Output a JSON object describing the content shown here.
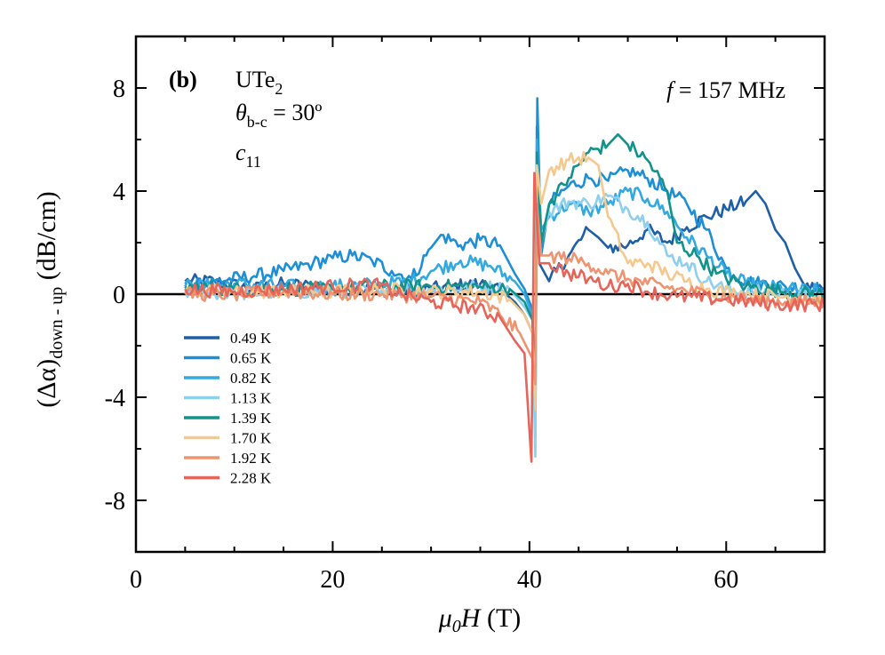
{
  "chart_data": {
    "type": "line",
    "panel_label": "(b)",
    "annotations": {
      "material": "UTe",
      "material_sub": "2",
      "angle_symbol": "θ",
      "angle_sub": "b-c",
      "angle_value": " = 30º",
      "mode_symbol": "c",
      "mode_sub": "11",
      "freq_symbol": "f",
      "freq_value": " = 157 MHz"
    },
    "xlabel": {
      "mu": "μ",
      "mu_sub": "0",
      "H": "H",
      "unit": " (T)"
    },
    "ylabel": {
      "delta": "(Δα)",
      "sub": "down - up",
      "unit": " (dB/cm)"
    },
    "xlim": [
      0,
      70
    ],
    "ylim": [
      -10,
      10
    ],
    "x_ticks": [
      0,
      20,
      40,
      60
    ],
    "y_ticks": [
      -8,
      -4,
      0,
      4,
      8
    ],
    "x_minor_step": 5,
    "y_minor_step": 2,
    "zero_line": true,
    "legend_position": "lower-left",
    "series": [
      {
        "name": "0.49 K",
        "color": "#1f5fa6",
        "points": [
          [
            5,
            0.5
          ],
          [
            8,
            0.5
          ],
          [
            12,
            0.2
          ],
          [
            15,
            0.4
          ],
          [
            18,
            0.3
          ],
          [
            20,
            0.1
          ],
          [
            24,
            0.2
          ],
          [
            28,
            0.1
          ],
          [
            32,
            0.3
          ],
          [
            35,
            0.4
          ],
          [
            37,
            0.2
          ],
          [
            38.5,
            -0.3
          ],
          [
            39.5,
            -0.8
          ],
          [
            40.3,
            -1.5
          ],
          [
            40.6,
            -4.0
          ],
          [
            40.75,
            6.5
          ],
          [
            41,
            1.2
          ],
          [
            42,
            0.5
          ],
          [
            44,
            1.5
          ],
          [
            46,
            2.5
          ],
          [
            47,
            2.2
          ],
          [
            48,
            1.8
          ],
          [
            50,
            1.9
          ],
          [
            52,
            2.5
          ],
          [
            54,
            2.0
          ],
          [
            56,
            2.6
          ],
          [
            58,
            3.0
          ],
          [
            60,
            3.3
          ],
          [
            62,
            3.6
          ],
          [
            63,
            4.0
          ],
          [
            64,
            3.5
          ],
          [
            65,
            2.5
          ],
          [
            66,
            2.0
          ],
          [
            67,
            1.0
          ],
          [
            68,
            0.3
          ],
          [
            70,
            0.2
          ]
        ]
      },
      {
        "name": "0.65 K",
        "color": "#1c8fd6",
        "points": [
          [
            5,
            0.4
          ],
          [
            8,
            0.5
          ],
          [
            12,
            0.7
          ],
          [
            15,
            0.9
          ],
          [
            18,
            1.2
          ],
          [
            20,
            1.4
          ],
          [
            22,
            1.5
          ],
          [
            24,
            1.3
          ],
          [
            26,
            0.9
          ],
          [
            28,
            0.6
          ],
          [
            30,
            1.8
          ],
          [
            31,
            2.3
          ],
          [
            33,
            1.9
          ],
          [
            35,
            2.1
          ],
          [
            37,
            1.9
          ],
          [
            38.5,
            0.8
          ],
          [
            39.5,
            0.2
          ],
          [
            40.3,
            -0.6
          ],
          [
            40.6,
            -5.5
          ],
          [
            40.8,
            7.6
          ],
          [
            41.2,
            1.5
          ],
          [
            42,
            3.5
          ],
          [
            44,
            4.2
          ],
          [
            46,
            4.5
          ],
          [
            48,
            4.4
          ],
          [
            50,
            4.8
          ],
          [
            52,
            4.5
          ],
          [
            54,
            4.0
          ],
          [
            56,
            3.5
          ],
          [
            58,
            2.5
          ],
          [
            60,
            1.0
          ],
          [
            62,
            0.5
          ],
          [
            66,
            0.3
          ],
          [
            70,
            0.2
          ]
        ]
      },
      {
        "name": "0.82 K",
        "color": "#33a9e0",
        "points": [
          [
            5,
            0.3
          ],
          [
            10,
            0.4
          ],
          [
            15,
            0.3
          ],
          [
            20,
            0.3
          ],
          [
            25,
            0.4
          ],
          [
            28,
            0.5
          ],
          [
            30,
            0.9
          ],
          [
            33,
            1.3
          ],
          [
            36,
            1.1
          ],
          [
            38.5,
            0.5
          ],
          [
            39.5,
            0.0
          ],
          [
            40.3,
            -0.8
          ],
          [
            40.6,
            -3.5
          ],
          [
            40.75,
            6.0
          ],
          [
            41.2,
            2.5
          ],
          [
            42,
            3.0
          ],
          [
            44,
            3.5
          ],
          [
            46,
            3.2
          ],
          [
            48,
            3.5
          ],
          [
            50,
            4.0
          ],
          [
            52,
            3.7
          ],
          [
            54,
            3.2
          ],
          [
            56,
            2.2
          ],
          [
            58,
            1.5
          ],
          [
            60,
            0.8
          ],
          [
            62,
            0.4
          ],
          [
            66,
            0.2
          ],
          [
            70,
            0.1
          ]
        ]
      },
      {
        "name": "1.13 K",
        "color": "#8ecfee",
        "points": [
          [
            5,
            0.1
          ],
          [
            10,
            0.0
          ],
          [
            15,
            0.1
          ],
          [
            20,
            0.1
          ],
          [
            25,
            0.2
          ],
          [
            30,
            0.2
          ],
          [
            35,
            0.3
          ],
          [
            38,
            0.2
          ],
          [
            39.5,
            -0.5
          ],
          [
            40.3,
            -1.0
          ],
          [
            40.6,
            -6.3
          ],
          [
            40.75,
            5.2
          ],
          [
            41.2,
            2.0
          ],
          [
            42,
            3.2
          ],
          [
            44,
            3.6
          ],
          [
            46,
            3.5
          ],
          [
            48,
            3.8
          ],
          [
            50,
            3.3
          ],
          [
            52,
            2.8
          ],
          [
            54,
            1.5
          ],
          [
            56,
            1.2
          ],
          [
            58,
            0.5
          ],
          [
            60,
            0.2
          ],
          [
            66,
            0.0
          ],
          [
            70,
            -0.2
          ]
        ]
      },
      {
        "name": "1.39 K",
        "color": "#11928a",
        "points": [
          [
            5,
            0.3
          ],
          [
            10,
            0.2
          ],
          [
            15,
            0.2
          ],
          [
            20,
            0.2
          ],
          [
            25,
            0.3
          ],
          [
            30,
            0.3
          ],
          [
            35,
            0.3
          ],
          [
            38,
            0.2
          ],
          [
            39.5,
            -0.3
          ],
          [
            40.3,
            -1.0
          ],
          [
            40.6,
            -4.5
          ],
          [
            40.75,
            5.5
          ],
          [
            41.2,
            2.0
          ],
          [
            42,
            3.5
          ],
          [
            44,
            4.5
          ],
          [
            46,
            5.5
          ],
          [
            48,
            5.8
          ],
          [
            49,
            6.2
          ],
          [
            50,
            5.8
          ],
          [
            52,
            5.2
          ],
          [
            54,
            4.0
          ],
          [
            55,
            2.0
          ],
          [
            57,
            1.5
          ],
          [
            59,
            0.8
          ],
          [
            62,
            0.3
          ],
          [
            66,
            0.1
          ],
          [
            70,
            0.0
          ]
        ]
      },
      {
        "name": "1.70 K",
        "color": "#f5c98e",
        "points": [
          [
            5,
            0.1
          ],
          [
            10,
            0.1
          ],
          [
            15,
            0.1
          ],
          [
            20,
            0.1
          ],
          [
            25,
            0.2
          ],
          [
            30,
            0.1
          ],
          [
            35,
            0.1
          ],
          [
            38,
            -0.2
          ],
          [
            39.5,
            -0.8
          ],
          [
            40.3,
            -1.5
          ],
          [
            40.6,
            -4.5
          ],
          [
            40.75,
            5.0
          ],
          [
            41.2,
            3.5
          ],
          [
            42,
            4.8
          ],
          [
            44,
            5.2
          ],
          [
            46,
            5.3
          ],
          [
            47,
            5.0
          ],
          [
            48,
            3.0
          ],
          [
            50,
            1.2
          ],
          [
            52,
            1.2
          ],
          [
            54,
            0.8
          ],
          [
            56,
            0.5
          ],
          [
            58,
            0.2
          ],
          [
            62,
            0.0
          ],
          [
            66,
            -0.1
          ],
          [
            70,
            -0.2
          ]
        ]
      },
      {
        "name": "1.92 K",
        "color": "#ef9470",
        "points": [
          [
            5,
            0.0
          ],
          [
            10,
            0.0
          ],
          [
            15,
            0.1
          ],
          [
            20,
            0.0
          ],
          [
            25,
            0.0
          ],
          [
            30,
            -0.1
          ],
          [
            35,
            -0.3
          ],
          [
            37,
            -0.8
          ],
          [
            39,
            -1.5
          ],
          [
            40.3,
            -2.5
          ],
          [
            40.6,
            -3.5
          ],
          [
            40.75,
            3.5
          ],
          [
            41.2,
            1.5
          ],
          [
            42,
            1.5
          ],
          [
            44,
            1.4
          ],
          [
            46,
            1.2
          ],
          [
            48,
            0.8
          ],
          [
            50,
            0.6
          ],
          [
            52,
            0.4
          ],
          [
            55,
            0.2
          ],
          [
            58,
            0.0
          ],
          [
            62,
            -0.2
          ],
          [
            66,
            -0.3
          ],
          [
            70,
            -0.3
          ]
        ]
      },
      {
        "name": "2.28 K",
        "color": "#e5655a",
        "points": [
          [
            5,
            0.2
          ],
          [
            10,
            0.1
          ],
          [
            15,
            0.2
          ],
          [
            20,
            0.3
          ],
          [
            24,
            0.4
          ],
          [
            27,
            0.0
          ],
          [
            30,
            -0.3
          ],
          [
            34,
            -0.5
          ],
          [
            37,
            -0.9
          ],
          [
            38.5,
            -1.8
          ],
          [
            39.5,
            -2.3
          ],
          [
            40.2,
            -6.5
          ],
          [
            40.5,
            4.7
          ],
          [
            41,
            1.2
          ],
          [
            42,
            1.2
          ],
          [
            44,
            0.8
          ],
          [
            46,
            0.6
          ],
          [
            48,
            0.3
          ],
          [
            50,
            0.4
          ],
          [
            52,
            0.1
          ],
          [
            55,
            -0.1
          ],
          [
            60,
            -0.2
          ],
          [
            65,
            -0.4
          ],
          [
            70,
            -0.4
          ]
        ]
      }
    ]
  }
}
